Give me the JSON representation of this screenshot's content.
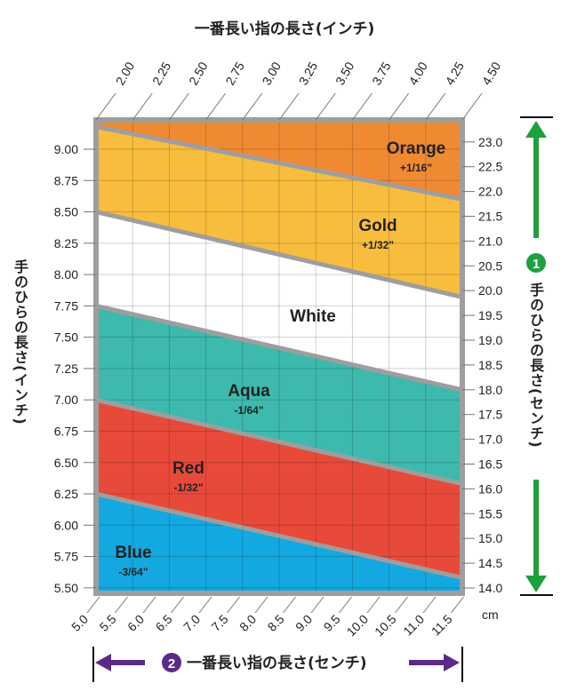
{
  "chart_data": {
    "type": "area",
    "title": "一番長い指の長さ(インチ)",
    "xlabel": "一番長い指の長さ(インチ)",
    "ylabel": "手のひらの長さ(インチ)",
    "x_ticks": [
      "2.00",
      "2.25",
      "2.50",
      "2.75",
      "3.00",
      "3.25",
      "3.50",
      "3.75",
      "4.00",
      "4.25",
      "4.50"
    ],
    "xlim": [
      2.0,
      4.5
    ],
    "y_ticks": [
      "9.00",
      "8.75",
      "8.50",
      "8.25",
      "8.00",
      "7.75",
      "7.50",
      "7.25",
      "7.00",
      "6.75",
      "6.50",
      "6.25",
      "6.00",
      "5.75",
      "5.50"
    ],
    "ylim": [
      5.5,
      9.22
    ],
    "y2_label": "手のひらの長さ(センチ)",
    "y2_ticks": [
      "23.0",
      "22.5",
      "22.0",
      "21.5",
      "21.0",
      "20.5",
      "20.0",
      "19.5",
      "19.0",
      "18.5",
      "18.0",
      "17.5",
      "17.0",
      "16.5",
      "16.0",
      "15.5",
      "15.0",
      "14.5",
      "14.0"
    ],
    "x2_label": "一番長い指の長さ(センチ)",
    "x2_ticks": [
      "5.0",
      "5.5",
      "6.0",
      "6.5",
      "7.0",
      "7.5",
      "8.0",
      "8.5",
      "9.0",
      "9.5",
      "10.0",
      "10.5",
      "11.0",
      "11.5"
    ],
    "x2_unit": "cm",
    "grid": true,
    "boundaries": [
      {
        "at_x_2_00": 9.18,
        "at_x_4_50": 8.6
      },
      {
        "at_x_2_00": 8.5,
        "at_x_4_50": 7.82
      },
      {
        "at_x_2_00": 7.75,
        "at_x_4_50": 7.08
      },
      {
        "at_x_2_00": 7.0,
        "at_x_4_50": 6.33
      },
      {
        "at_x_2_00": 6.25,
        "at_x_4_50": 5.58
      }
    ],
    "bands": [
      {
        "name": "Orange",
        "adjust": "+1/16\"",
        "color": "#F08A32"
      },
      {
        "name": "Gold",
        "adjust": "+1/32\"",
        "color": "#F8BD3D"
      },
      {
        "name": "White",
        "adjust": "",
        "color": "#FFFFFF"
      },
      {
        "name": "Aqua",
        "adjust": "-1/64\"",
        "color": "#3DB9AE"
      },
      {
        "name": "Red",
        "adjust": "-1/32\"",
        "color": "#E84A3A"
      },
      {
        "name": "Blue",
        "adjust": "-3/64\"",
        "color": "#14A8E0"
      }
    ]
  },
  "markers": {
    "step1": "1",
    "step2": "2"
  },
  "colors": {
    "green": "#1FA03C",
    "purple": "#5B2A86",
    "frame": "#9E9E9E"
  }
}
